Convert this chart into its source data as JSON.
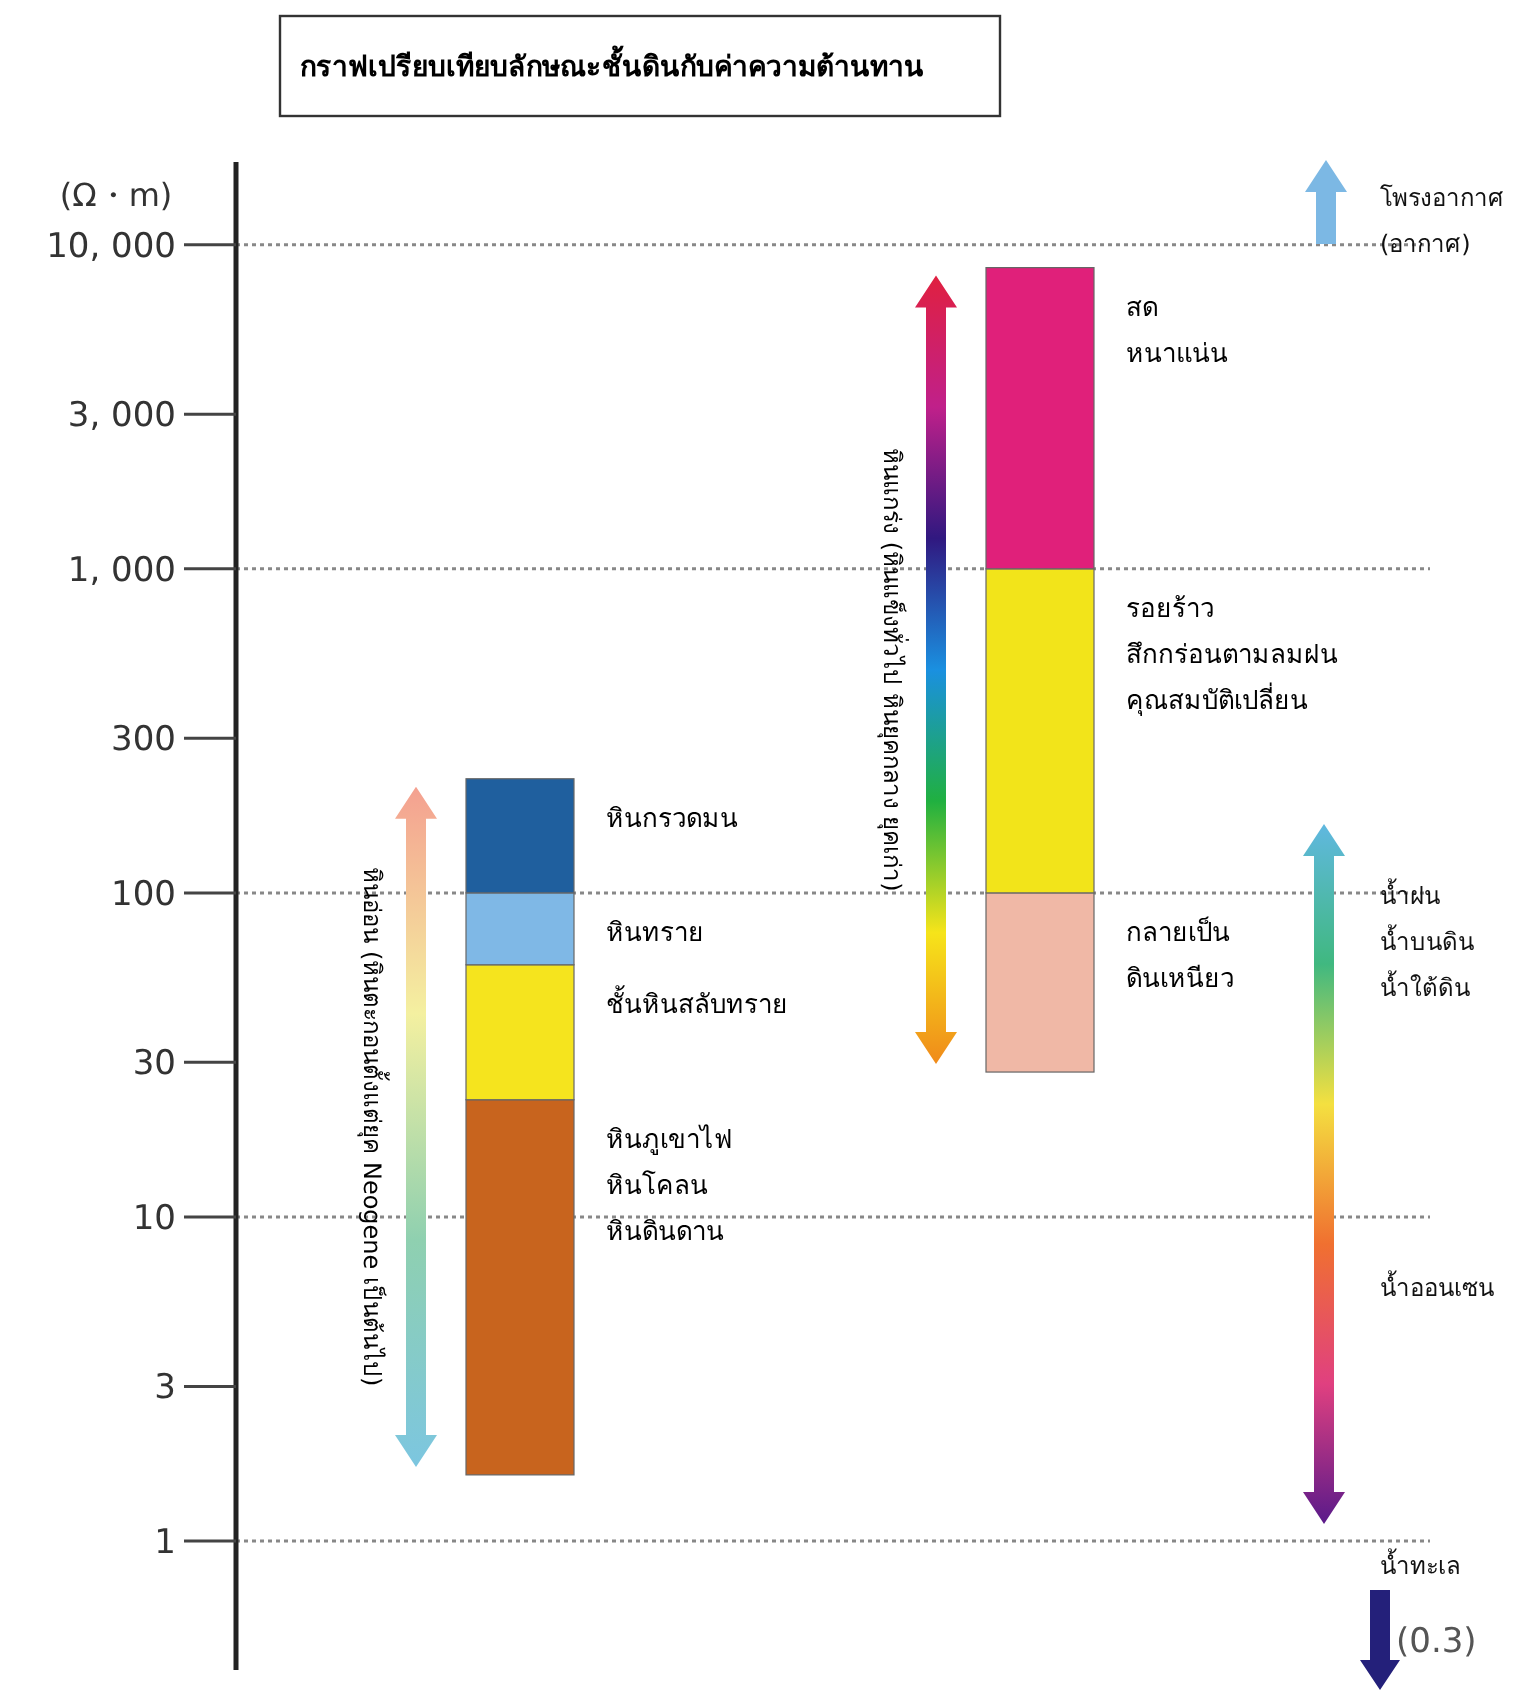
{
  "chart_data": {
    "type": "bar",
    "title": "กราฟเปรียบเทียบลักษณะชั้นดินกับค่าความต้านทาน",
    "ylabel": "(Ω・m)",
    "log": true,
    "ylim": [
      0.4,
      18000
    ],
    "yticks": [
      1,
      3,
      10,
      30,
      100,
      300,
      {
        "value": 1000,
        "label": "1, 000"
      },
      {
        "value": 3000,
        "label": "3, 000"
      },
      {
        "value": 10000,
        "label": "10, 000"
      }
    ],
    "categories": [
      null,
      null
    ],
    "grid": false,
    "series": [
      {
        "name": "หินภูเขาไฟ\nหินโคลน\n\nหินดินดาน",
        "color": "#c8641e",
        "values": [
          21.4,
          null
        ],
        "base": [
          1.6,
          null
        ]
      },
      {
        "name": "ชั้นหินสลับทราย",
        "color": "#f5e41e",
        "values": [
          37,
          null
        ],
        "base": [
          23,
          null
        ]
      },
      {
        "name": "หินทราย",
        "color": "#7fb8e6",
        "values": [
          40,
          null
        ],
        "base": [
          60,
          null
        ]
      },
      {
        "name": "หินกรวดมน",
        "color": "#1f5f9e",
        "values": [
          125,
          null
        ],
        "base": [
          100,
          null
        ]
      },
      {
        "name": "กลายเป็น\nดินเหนียว",
        "color": "#f0b8a6",
        "values": [
          null,
          72
        ],
        "base": [
          null,
          28
        ]
      },
      {
        "name": "รอยร้าว\n\nสึกกร่อนตามลมฝน\nคุณสมบัติเปลี่ยน",
        "color": "#f2e41a",
        "values": [
          null,
          900
        ],
        "base": [
          null,
          100
        ]
      },
      {
        "name": "สด\nหนาแน่น",
        "color": "#e0207a",
        "values": [
          null,
          7500
        ],
        "base": [
          null,
          1000
        ]
      }
    ],
    "ref_lines": [
      {
        "axis": "y",
        "value": 1,
        "color": "#888888",
        "line_style": "dotted"
      },
      {
        "axis": "y",
        "value": 10,
        "color": "#888888",
        "line_style": "dotted"
      },
      {
        "axis": "y",
        "value": 100,
        "color": "#888888",
        "line_style": "dotted"
      },
      {
        "axis": "y",
        "value": 1000,
        "color": "#888888",
        "line_style": "dotted"
      },
      {
        "axis": "y",
        "value": 10000,
        "color": "#888888",
        "line_style": "dotted"
      }
    ],
    "annotations": [
      "หินอ่อน (หินตะกอนตั้งแต่ยุค Neogene เป็นต้นไป)",
      "หินแกร่ง (หินแข็งทั่วไป หินยุคกลาง ยุคเก่า)",
      "โพรงอากาศ\n(อากาศ)",
      "น้ำฝน\nน้ำบนดิน\nน้ำใต้ดิน",
      "น้ำออนเซน",
      "น้ำทะเล",
      "(0.3)"
    ]
  }
}
